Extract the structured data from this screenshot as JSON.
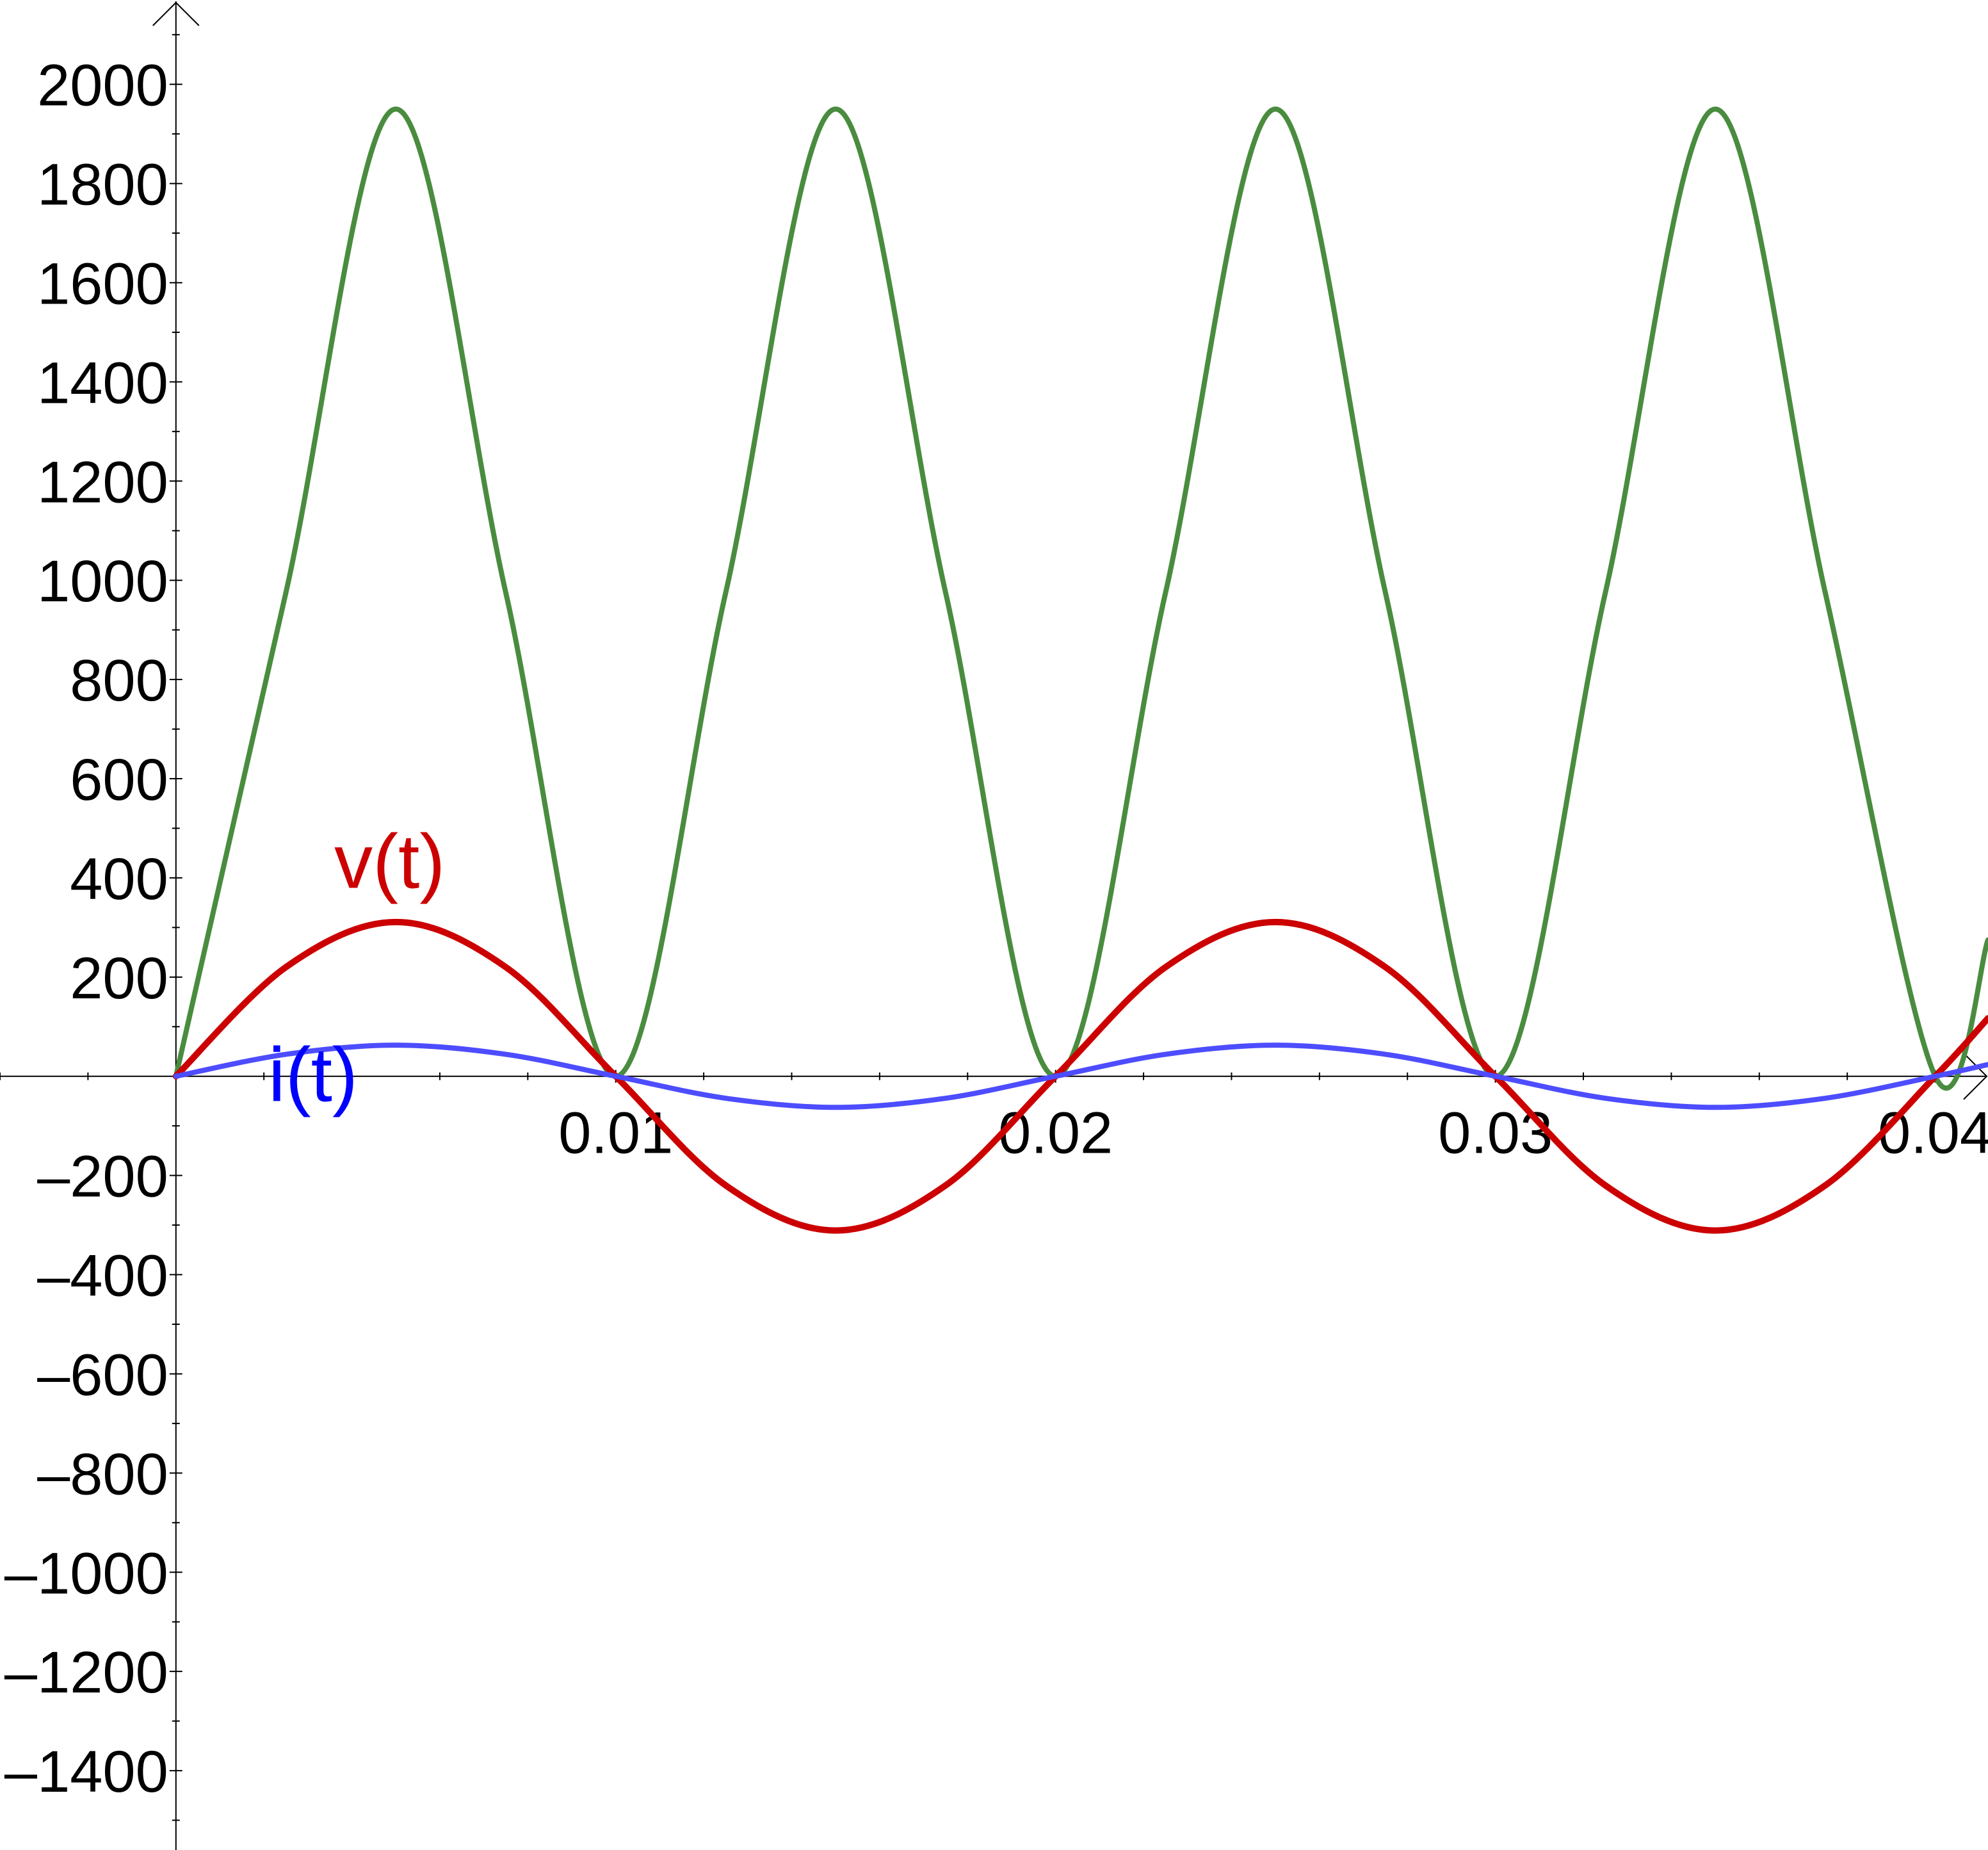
{
  "chart_data": {
    "type": "line",
    "title": "",
    "xlabel": "",
    "ylabel": "",
    "xlim": [
      -0.004,
      0.0412
    ],
    "ylim": [
      -1560,
      2170
    ],
    "grid": false,
    "x_ticks": [
      0.01,
      0.02,
      0.03,
      0.04
    ],
    "x_tick_labels": [
      "0.01",
      "0.02",
      "0.03",
      "0.04"
    ],
    "x_minor_step": 0.002,
    "y_ticks": [
      2000,
      1800,
      1600,
      1400,
      1200,
      1000,
      800,
      600,
      400,
      200,
      -200,
      -400,
      -600,
      -800,
      -1000,
      -1200,
      -1400
    ],
    "y_tick_labels": [
      "2000",
      "1800",
      "1600",
      "1400",
      "1200",
      "1000",
      "800",
      "600",
      "400",
      "200",
      "–200",
      "–400",
      "–600",
      "–800",
      "–1000",
      "–1200",
      "–1400"
    ],
    "y_minor_step": 100,
    "series": [
      {
        "id": "power",
        "color": "#4a8c3f",
        "x": [
          0,
          0.0025,
          0.005,
          0.0075,
          0.01,
          0.0125,
          0.015,
          0.0175,
          0.02,
          0.0225,
          0.025,
          0.0275,
          0.03,
          0.0325,
          0.035,
          0.0375,
          0.04,
          0.0412
        ],
        "values": [
          0,
          975,
          1950,
          975,
          0,
          975,
          1950,
          975,
          0,
          975,
          1950,
          975,
          0,
          975,
          1950,
          975,
          0,
          275
        ]
      },
      {
        "name": "v(t)",
        "color": "#cc0000",
        "x": [
          0,
          0.0025,
          0.005,
          0.0075,
          0.01,
          0.0125,
          0.015,
          0.0175,
          0.02,
          0.0225,
          0.025,
          0.0275,
          0.03,
          0.0325,
          0.035,
          0.0375,
          0.04,
          0.0412
        ],
        "values": [
          0,
          220,
          311,
          220,
          0,
          -220,
          -311,
          -220,
          0,
          220,
          311,
          220,
          0,
          -220,
          -311,
          -220,
          0,
          117
        ]
      },
      {
        "name": "i(t)",
        "color": "#4d4dff",
        "x": [
          0,
          0.0025,
          0.005,
          0.0075,
          0.01,
          0.0125,
          0.015,
          0.0175,
          0.02,
          0.0225,
          0.025,
          0.0275,
          0.03,
          0.0325,
          0.035,
          0.0375,
          0.04,
          0.0412
        ],
        "values": [
          0,
          44.3,
          62.7,
          44.3,
          0,
          -44.3,
          -62.7,
          -44.3,
          0,
          44.3,
          62.7,
          44.3,
          0,
          -44.3,
          -62.7,
          -44.3,
          0,
          23.6
        ]
      }
    ],
    "curve_labels": [
      {
        "text": "v(t)",
        "x": 0.0036,
        "y": 380,
        "color": "#cc0000"
      },
      {
        "text": "i(t)",
        "x": 0.0021,
        "y": -50,
        "color": "#0000ff"
      }
    ]
  }
}
